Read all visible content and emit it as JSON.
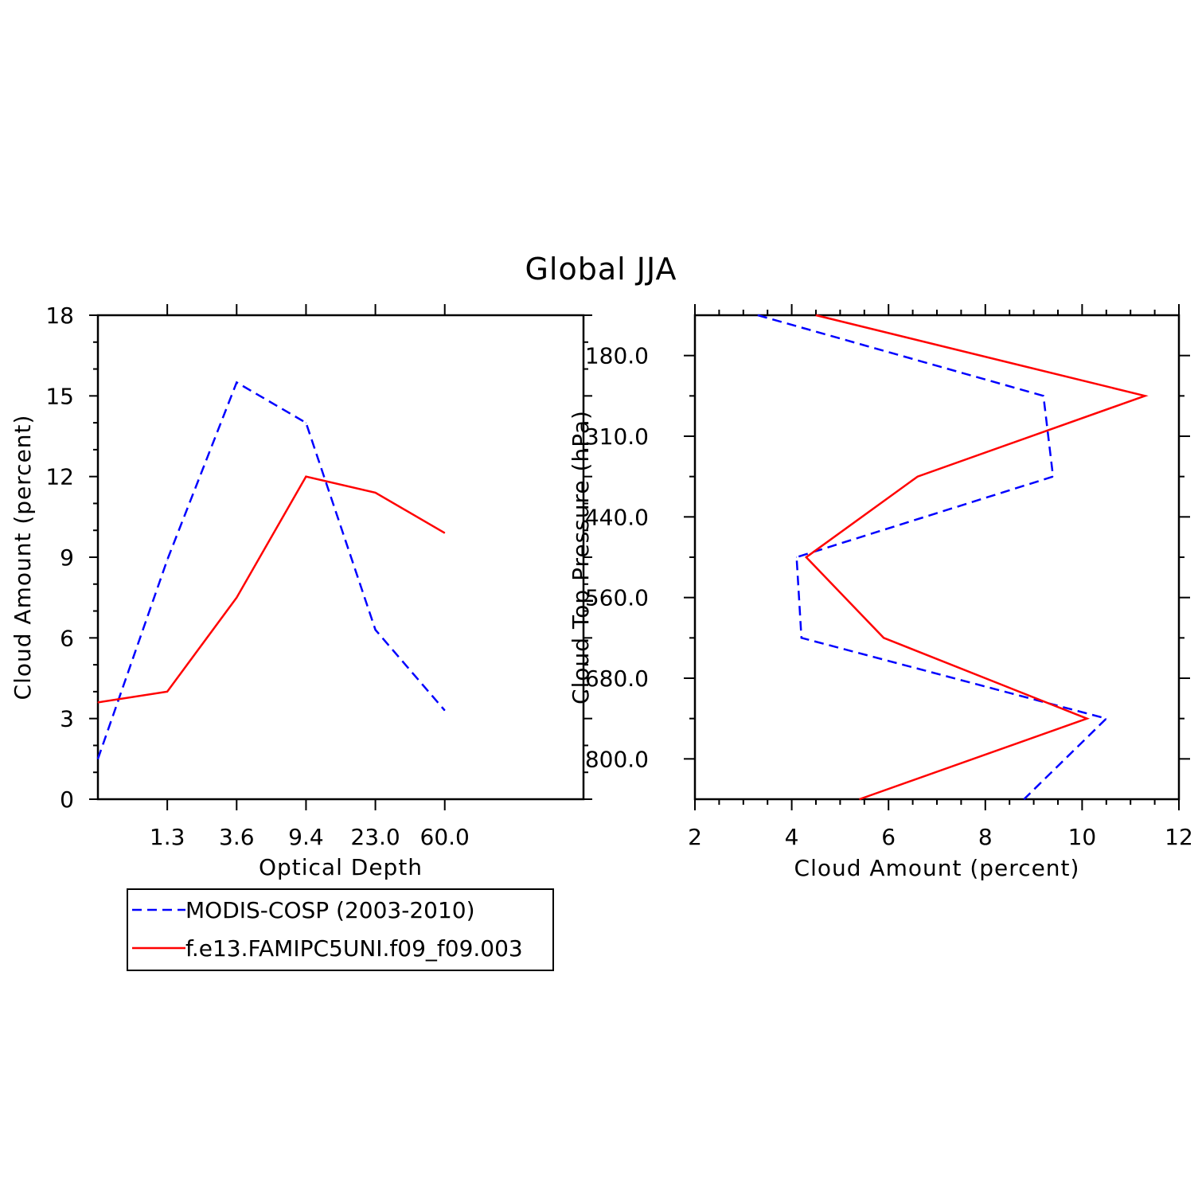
{
  "title": "Global JJA",
  "colors": {
    "modis": "#0000ff",
    "model": "#ff0000",
    "axis": "#000000"
  },
  "legend": {
    "entries": [
      {
        "label": "MODIS-COSP (2003-2010)",
        "color": "#0000ff",
        "dash": true
      },
      {
        "label": "f.e13.FAMIPC5UNI.f09_f09.003",
        "color": "#ff0000",
        "dash": false
      }
    ]
  },
  "chart_data": [
    {
      "type": "line",
      "xlabel": "Optical Depth",
      "ylabel": "Cloud Amount (percent)",
      "ylim": [
        0,
        18
      ],
      "yticks": [
        0,
        3,
        6,
        9,
        12,
        15,
        18
      ],
      "xtick_labels": [
        "1.3",
        "3.6",
        "9.4",
        "23.0",
        "60.0"
      ],
      "x_bins": 7,
      "series": [
        {
          "name": "MODIS-COSP (2003-2010)",
          "color": "#0000ff",
          "dash": true,
          "values": [
            1.5,
            8.9,
            15.5,
            14.0,
            6.3,
            3.3
          ]
        },
        {
          "name": "f.e13.FAMIPC5UNI.f09_f09.003",
          "color": "#ff0000",
          "dash": false,
          "values": [
            3.6,
            4.0,
            7.5,
            12.0,
            11.4,
            9.9
          ]
        }
      ]
    },
    {
      "type": "line",
      "orientation": "vertical-profile",
      "xlabel": "Cloud Amount (percent)",
      "ylabel": "Cloud Top Pressure (hPa)",
      "xlim": [
        2,
        12
      ],
      "xticks": [
        2,
        4,
        6,
        8,
        10,
        12
      ],
      "ytick_labels": [
        "180.0",
        "310.0",
        "440.0",
        "560.0",
        "680.0",
        "800.0"
      ],
      "y_bins": 12,
      "series": [
        {
          "name": "MODIS-COSP (2003-2010)",
          "color": "#0000ff",
          "dash": true,
          "values": [
            3.3,
            9.2,
            9.4,
            4.1,
            4.2,
            10.5,
            8.8
          ]
        },
        {
          "name": "f.e13.FAMIPC5UNI.f09_f09.003",
          "color": "#ff0000",
          "dash": false,
          "values": [
            4.5,
            11.3,
            6.6,
            4.3,
            5.9,
            10.1,
            5.4
          ]
        }
      ]
    }
  ]
}
